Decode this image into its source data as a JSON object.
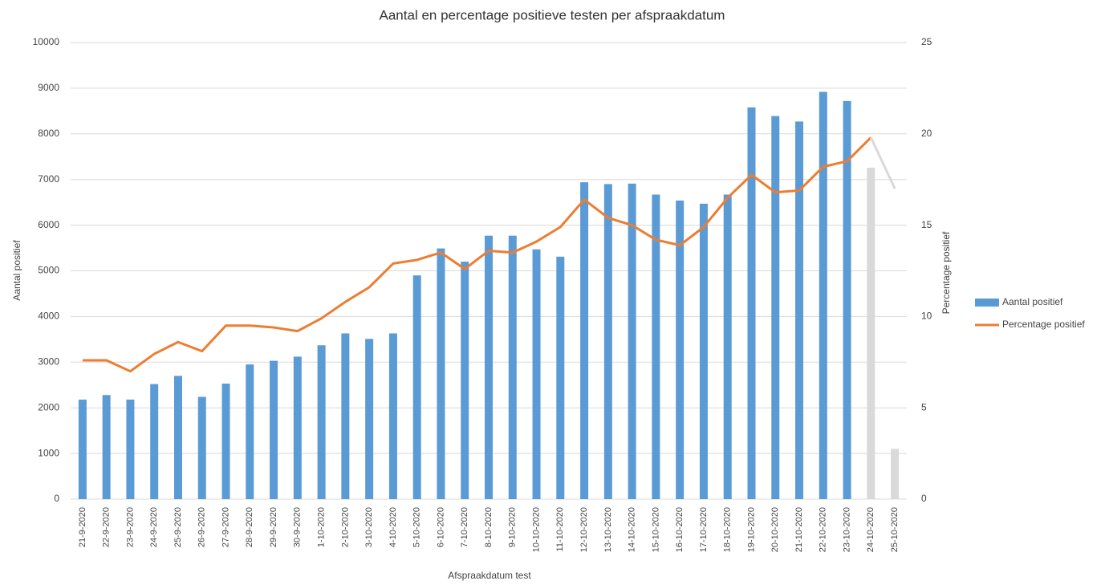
{
  "chart_data": {
    "type": "bar_line",
    "title": "Aantal en percentage positieve testen per afspraakdatum",
    "x_label": "Afspraakdatum test",
    "y_label": "Aantal positief",
    "y2_label": "Percentage positief",
    "categories": [
      "21-9-2020",
      "22-9-2020",
      "23-9-2020",
      "24-9-2020",
      "25-9-2020",
      "26-9-2020",
      "27-9-2020",
      "28-9-2020",
      "29-9-2020",
      "30-9-2020",
      "1-10-2020",
      "2-10-2020",
      "3-10-2020",
      "4-10-2020",
      "5-10-2020",
      "6-10-2020",
      "7-10-2020",
      "8-10-2020",
      "9-10-2020",
      "10-10-2020",
      "11-10-2020",
      "12-10-2020",
      "13-10-2020",
      "14-10-2020",
      "15-10-2020",
      "16-10-2020",
      "17-10-2020",
      "18-10-2020",
      "19-10-2020",
      "20-10-2020",
      "21-10-2020",
      "22-10-2020",
      "23-10-2020",
      "24-10-2020",
      "25-10-2020"
    ],
    "series": [
      {
        "name": "Aantal positief",
        "type": "bar",
        "color": "#5b9bd5",
        "point_colors": [
          "#5b9bd5",
          "#5b9bd5",
          "#5b9bd5",
          "#5b9bd5",
          "#5b9bd5",
          "#5b9bd5",
          "#5b9bd5",
          "#5b9bd5",
          "#5b9bd5",
          "#5b9bd5",
          "#5b9bd5",
          "#5b9bd5",
          "#5b9bd5",
          "#5b9bd5",
          "#5b9bd5",
          "#5b9bd5",
          "#5b9bd5",
          "#5b9bd5",
          "#5b9bd5",
          "#5b9bd5",
          "#5b9bd5",
          "#5b9bd5",
          "#5b9bd5",
          "#5b9bd5",
          "#5b9bd5",
          "#5b9bd5",
          "#5b9bd5",
          "#5b9bd5",
          "#5b9bd5",
          "#5b9bd5",
          "#5b9bd5",
          "#5b9bd5",
          "#5b9bd5",
          "#d9d9d9",
          "#d9d9d9"
        ],
        "values": [
          2180,
          2280,
          2180,
          2520,
          2700,
          2240,
          2530,
          2950,
          3030,
          3120,
          3370,
          3630,
          3510,
          3630,
          4900,
          5490,
          5200,
          5770,
          5770,
          5470,
          5310,
          6940,
          6900,
          6910,
          6670,
          6540,
          6470,
          6670,
          8580,
          8390,
          8270,
          8920,
          8720,
          7260,
          1100
        ]
      },
      {
        "name": "Percentage positief",
        "type": "line",
        "axis": "y2",
        "color": "#ed7d31",
        "point_colors": [
          "#ed7d31",
          "#ed7d31",
          "#ed7d31",
          "#ed7d31",
          "#ed7d31",
          "#ed7d31",
          "#ed7d31",
          "#ed7d31",
          "#ed7d31",
          "#ed7d31",
          "#ed7d31",
          "#ed7d31",
          "#ed7d31",
          "#ed7d31",
          "#ed7d31",
          "#ed7d31",
          "#ed7d31",
          "#ed7d31",
          "#ed7d31",
          "#ed7d31",
          "#ed7d31",
          "#ed7d31",
          "#ed7d31",
          "#ed7d31",
          "#ed7d31",
          "#ed7d31",
          "#ed7d31",
          "#ed7d31",
          "#ed7d31",
          "#ed7d31",
          "#ed7d31",
          "#ed7d31",
          "#ed7d31",
          "#ed7d31",
          "#d9d9d9"
        ],
        "values": [
          7.6,
          7.6,
          7.0,
          7.95,
          8.6,
          8.1,
          9.5,
          9.5,
          9.4,
          9.2,
          9.9,
          10.8,
          11.6,
          12.9,
          13.1,
          13.5,
          12.6,
          13.6,
          13.5,
          14.1,
          14.9,
          16.4,
          15.4,
          15.0,
          14.2,
          13.9,
          14.9,
          16.5,
          17.75,
          16.8,
          16.9,
          18.2,
          18.5,
          19.8,
          17.0
        ]
      }
    ],
    "ylim": [
      0,
      10000
    ],
    "yticks": [
      0,
      1000,
      2000,
      3000,
      4000,
      5000,
      6000,
      7000,
      8000,
      9000,
      10000
    ],
    "y2lim": [
      0,
      25
    ],
    "y2ticks": [
      0,
      5,
      10,
      15,
      20,
      25
    ],
    "grid": true,
    "legend": "right"
  }
}
